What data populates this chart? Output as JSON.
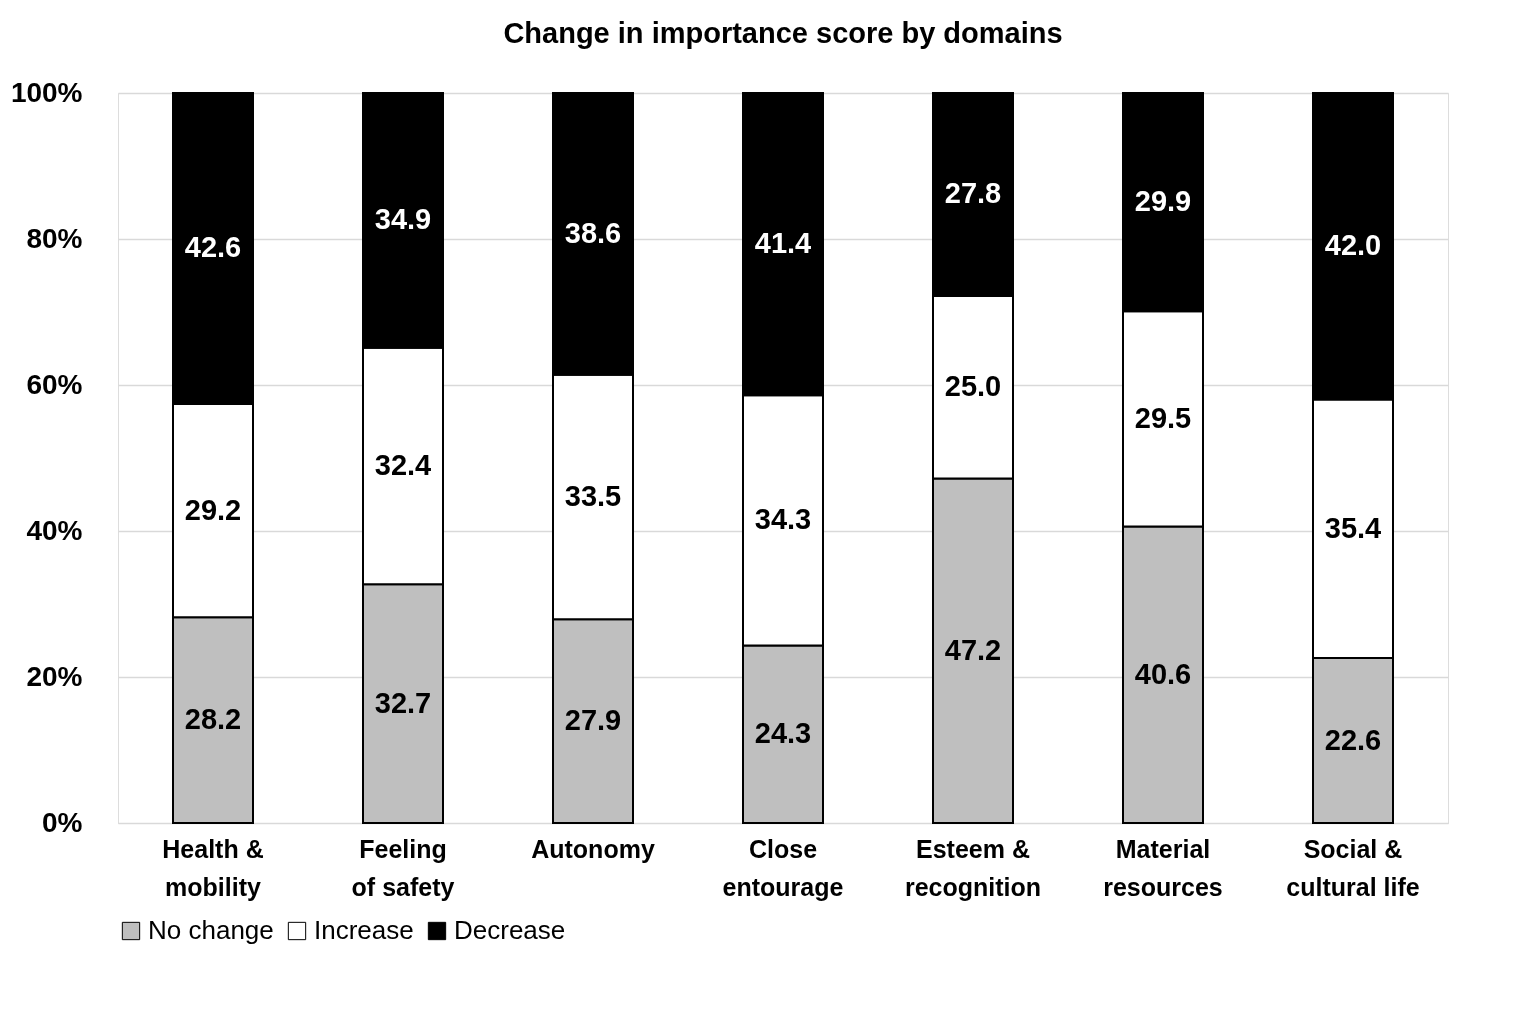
{
  "chart_data": {
    "type": "bar",
    "title": "Change in importance score by domains",
    "categories": [
      "Health & mobility",
      "Feeling of safety",
      "Autonomy",
      "Close entourage",
      "Esteem & recognition",
      "Material resources",
      "Social & cultural life"
    ],
    "stacked": true,
    "series": [
      {
        "name": "No change",
        "color": "#bfbfbf",
        "values": [
          28.2,
          32.7,
          27.9,
          24.3,
          47.2,
          40.6,
          22.6
        ],
        "value_labels": [
          "28.2",
          "32.7",
          "27.9",
          "24.3",
          "47.2",
          "40.6",
          "22.6"
        ]
      },
      {
        "name": "Increase",
        "color": "#ffffff",
        "values": [
          29.2,
          32.4,
          33.5,
          34.3,
          25.0,
          29.5,
          35.4
        ],
        "value_labels": [
          "29.2",
          "32.4",
          "33.5",
          "34.3",
          "25.0",
          "29.5",
          "35.4"
        ]
      },
      {
        "name": "Decrease",
        "color": "#000000",
        "values": [
          42.6,
          34.9,
          38.6,
          41.4,
          27.8,
          29.9,
          42.0
        ],
        "value_labels": [
          "42.6",
          "34.9",
          "38.6",
          "41.4",
          "27.8",
          "29.9",
          "42.0"
        ]
      }
    ],
    "ylim": [
      0,
      100
    ],
    "yticks": [
      {
        "value": 0,
        "label": "0%"
      },
      {
        "value": 20,
        "label": "20%"
      },
      {
        "value": 40,
        "label": "40%"
      },
      {
        "value": 60,
        "label": "60%"
      },
      {
        "value": 80,
        "label": "80%"
      },
      {
        "value": 100,
        "label": "100%"
      }
    ],
    "grid": "y",
    "legend": "bottom"
  }
}
